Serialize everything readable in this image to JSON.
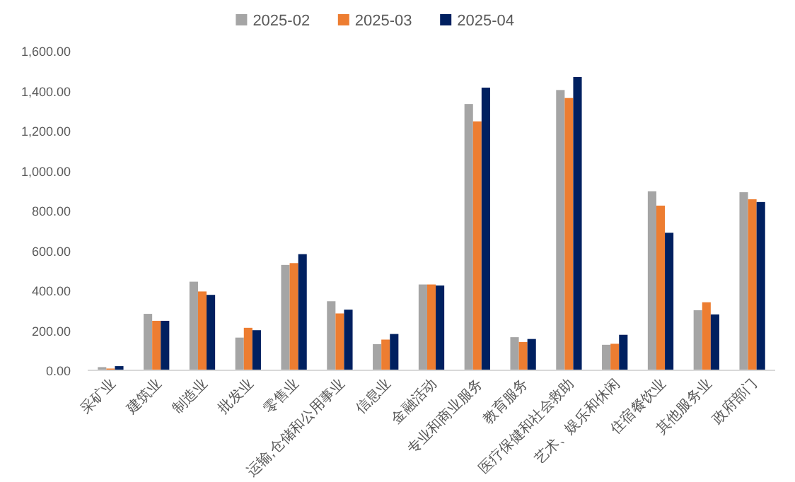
{
  "chart_data": {
    "type": "bar",
    "categories": [
      "采矿业",
      "建筑业",
      "制造业",
      "批发业",
      "零售业",
      "运输,仓储和公用事业",
      "信息业",
      "金融活动",
      "专业和商业服务",
      "教育服务",
      "医疗保健和社会救助",
      "艺术、娱乐和休闲",
      "住宿餐饮业",
      "其他服务业",
      "政府部门"
    ],
    "series": [
      {
        "name": "2025-02",
        "color": "#a5a5a5",
        "values": [
          16,
          283,
          444,
          164,
          528,
          346,
          131,
          430,
          1334,
          166,
          1404,
          128,
          897,
          301,
          892
        ]
      },
      {
        "name": "2025-03",
        "color": "#ed7d31",
        "values": [
          9,
          248,
          395,
          213,
          537,
          285,
          154,
          430,
          1247,
          142,
          1364,
          133,
          825,
          341,
          857
        ]
      },
      {
        "name": "2025-04",
        "color": "#002060",
        "values": [
          21,
          248,
          378,
          201,
          582,
          304,
          182,
          425,
          1416,
          157,
          1469,
          178,
          689,
          280,
          843
        ]
      }
    ],
    "ylim": [
      0,
      1600
    ],
    "yticks": [
      {
        "value": 0,
        "label": "0.00"
      },
      {
        "value": 200,
        "label": "200.00"
      },
      {
        "value": 400,
        "label": "400.00"
      },
      {
        "value": 600,
        "label": "600.00"
      },
      {
        "value": 800,
        "label": "800.00"
      },
      {
        "value": 1000,
        "label": "1,000.00"
      },
      {
        "value": 1200,
        "label": "1,200.00"
      },
      {
        "value": 1400,
        "label": "1,400.00"
      },
      {
        "value": 1600,
        "label": "1,600.00"
      }
    ],
    "grid": false,
    "legend": "top"
  }
}
